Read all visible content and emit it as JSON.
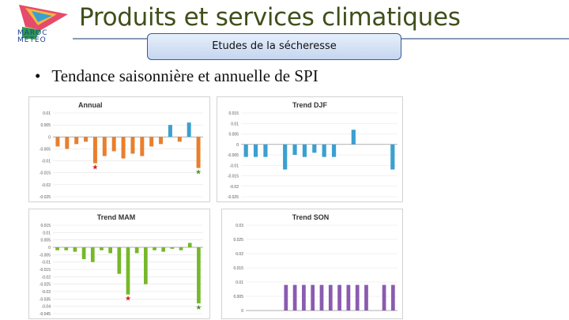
{
  "logo": {
    "text_line1": "MAROC",
    "text_line2": "METEO"
  },
  "header": {
    "title": "Produits et services climatiques",
    "subtitle": "Etudes de la sécheresse"
  },
  "bullet": "Tendance saisonnière et annuelle de SPI",
  "colors": {
    "title": "#3f4f1a",
    "orange": "#e87f2e",
    "blue": "#3aa0d0",
    "green": "#76b82a",
    "purple": "#8a5bb0",
    "marker_red": "#d21c1c",
    "marker_green": "#4a9a2a"
  },
  "chart_data": [
    {
      "type": "bar",
      "title": "Annual",
      "ylim": [
        -0.025,
        0.01
      ],
      "yticks": [
        "0.01",
        "0.005",
        "0",
        "-0.005",
        "-0.01",
        "-0.015",
        "-0.02",
        "-0.025"
      ],
      "values": [
        -0.004,
        -0.005,
        -0.003,
        -0.002,
        -0.011,
        -0.008,
        -0.006,
        -0.009,
        -0.007,
        -0.008,
        -0.004,
        -0.003,
        0.005,
        -0.002,
        0.006,
        -0.013
      ],
      "colors": [
        "orange",
        "orange",
        "orange",
        "orange",
        "orange",
        "orange",
        "orange",
        "orange",
        "orange",
        "orange",
        "orange",
        "orange",
        "blue",
        "orange",
        "blue",
        "orange"
      ],
      "markers": [
        4,
        15
      ]
    },
    {
      "type": "bar",
      "title": "Trend DJF",
      "ylim": [
        -0.025,
        0.015
      ],
      "yticks": [
        "0.015",
        "0.01",
        "0.005",
        "0",
        "-0.005",
        "-0.01",
        "-0.015",
        "-0.02",
        "-0.025"
      ],
      "values": [
        -0.006,
        -0.006,
        -0.006,
        0,
        -0.012,
        -0.005,
        -0.006,
        -0.004,
        -0.006,
        -0.006,
        0,
        0.007,
        0,
        0,
        0,
        -0.012
      ],
      "colors": [
        "blue",
        "blue",
        "blue",
        "blue",
        "blue",
        "blue",
        "blue",
        "blue",
        "blue",
        "blue",
        "blue",
        "blue",
        "blue",
        "blue",
        "blue",
        "blue"
      ]
    },
    {
      "type": "bar",
      "title": "Trend MAM",
      "ylim": [
        -0.045,
        0.015
      ],
      "yticks": [
        "0.015",
        "0.01",
        "0.005",
        "0",
        "-0.005",
        "-0.01",
        "-0.015",
        "-0.02",
        "-0.025",
        "-0.03",
        "-0.035",
        "-0.04",
        "-0.045"
      ],
      "values": [
        -0.002,
        -0.002,
        -0.003,
        -0.008,
        -0.01,
        -0.002,
        -0.004,
        -0.018,
        -0.032,
        -0.004,
        -0.025,
        -0.002,
        -0.003,
        -0.001,
        -0.002,
        0.003,
        -0.038
      ],
      "colors": [
        "green",
        "green",
        "green",
        "green",
        "green",
        "green",
        "green",
        "green",
        "green",
        "green",
        "green",
        "green",
        "green",
        "green",
        "green",
        "green",
        "green"
      ],
      "markers": [
        8,
        16
      ]
    },
    {
      "type": "bar",
      "title": "Trend SON",
      "ylim": [
        0,
        0.03
      ],
      "yticks": [
        "0.03",
        "0.025",
        "0.02",
        "0.015",
        "0.01",
        "0.005",
        "0"
      ],
      "values": [
        0,
        0,
        0,
        0,
        0.009,
        0.009,
        0.009,
        0.009,
        0.009,
        0.009,
        0.009,
        0.009,
        0.009,
        0.009,
        0,
        0.009,
        0.009
      ],
      "colors": [
        "purple",
        "purple",
        "purple",
        "purple",
        "purple",
        "purple",
        "purple",
        "purple",
        "purple",
        "purple",
        "purple",
        "purple",
        "purple",
        "purple",
        "purple",
        "purple",
        "purple"
      ]
    }
  ]
}
